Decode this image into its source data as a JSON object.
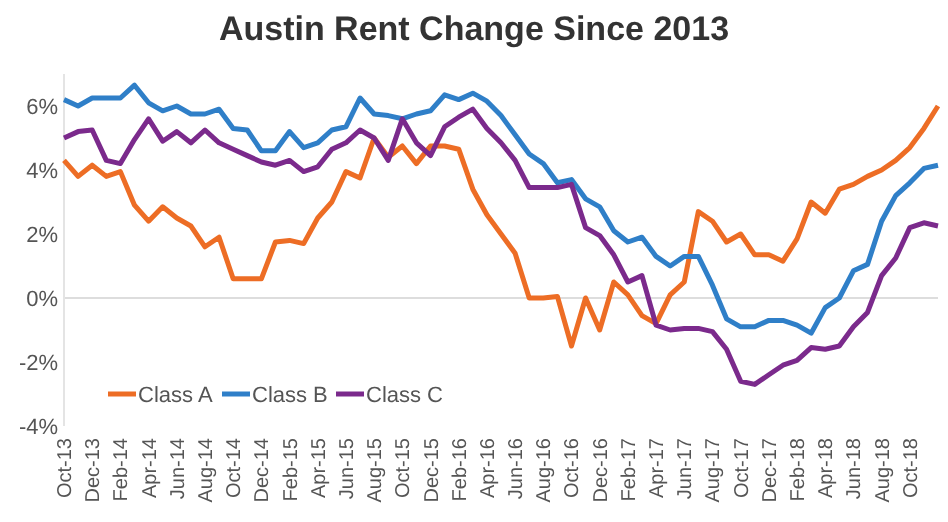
{
  "chart_data": {
    "type": "line",
    "title": "Austin Rent Change Since 2013",
    "categories": [
      "Oct-13",
      null,
      "Dec-13",
      null,
      "Feb-14",
      null,
      "Apr-14",
      null,
      "Jun-14",
      null,
      "Aug-14",
      null,
      "Oct-14",
      null,
      "Dec-14",
      null,
      "Feb-15",
      null,
      "Apr-15",
      null,
      "Jun-15",
      null,
      "Aug-15",
      null,
      "Oct-15",
      null,
      "Dec-15",
      null,
      "Feb-16",
      null,
      "Apr-16",
      null,
      "Jun-16",
      null,
      "Aug-16",
      null,
      "Oct-16",
      null,
      "Dec-16",
      null,
      "Feb-17",
      null,
      "Apr-17",
      null,
      "Jun-17",
      null,
      "Aug-17",
      null,
      "Oct-17",
      null,
      "Dec-17",
      null,
      "Feb-18",
      null,
      "Apr-18",
      null,
      "Jun-18",
      null,
      "Aug-18",
      null,
      "Oct-18",
      null,
      null
    ],
    "series": [
      {
        "name": "Class A",
        "color": "#ed6d25",
        "values": [
          4.3,
          3.8,
          4.15,
          3.8,
          3.95,
          2.9,
          2.4,
          2.85,
          2.5,
          2.25,
          1.6,
          1.9,
          0.6,
          0.6,
          0.6,
          1.75,
          1.8,
          1.7,
          2.5,
          3.0,
          3.95,
          3.75,
          5.0,
          4.4,
          4.75,
          4.2,
          4.75,
          4.75,
          4.65,
          3.4,
          2.6,
          2.0,
          1.4,
          0.0,
          0.0,
          0.05,
          -1.5,
          0.0,
          -1.0,
          0.5,
          0.1,
          -0.55,
          -0.8,
          0.1,
          0.5,
          2.7,
          2.4,
          1.75,
          2.0,
          1.35,
          1.35,
          1.15,
          1.85,
          3.0,
          2.65,
          3.4,
          3.55,
          3.8,
          4.0,
          4.3,
          4.7,
          5.3,
          6.0
        ]
      },
      {
        "name": "Class B",
        "color": "#2f7fc8",
        "values": [
          6.2,
          6.0,
          6.25,
          6.25,
          6.25,
          6.65,
          6.1,
          5.85,
          6.0,
          5.75,
          5.75,
          5.9,
          5.3,
          5.25,
          4.6,
          4.6,
          5.2,
          4.7,
          4.85,
          5.25,
          5.35,
          6.25,
          5.75,
          5.7,
          5.6,
          5.75,
          5.85,
          6.35,
          6.2,
          6.4,
          6.15,
          5.7,
          5.1,
          4.5,
          4.2,
          3.6,
          3.7,
          3.1,
          2.85,
          2.1,
          1.75,
          1.9,
          1.3,
          1.0,
          1.3,
          1.3,
          0.4,
          -0.65,
          -0.9,
          -0.9,
          -0.7,
          -0.7,
          -0.85,
          -1.1,
          -0.3,
          0.0,
          0.85,
          1.05,
          2.4,
          3.2,
          3.6,
          4.05,
          4.15
        ]
      },
      {
        "name": "Class C",
        "color": "#7b2a8c",
        "values": [
          5.0,
          5.2,
          5.25,
          4.3,
          4.2,
          4.95,
          5.6,
          4.9,
          5.2,
          4.85,
          5.25,
          4.85,
          4.65,
          4.45,
          4.25,
          4.15,
          4.3,
          3.95,
          4.1,
          4.65,
          4.85,
          5.25,
          5.0,
          4.3,
          5.6,
          4.85,
          4.45,
          5.35,
          5.65,
          5.9,
          5.3,
          4.85,
          4.3,
          3.45,
          3.45,
          3.45,
          3.55,
          2.2,
          1.95,
          1.35,
          0.5,
          0.7,
          -0.85,
          -1.0,
          -0.95,
          -0.95,
          -1.05,
          -1.6,
          -2.6,
          -2.7,
          -2.4,
          -2.1,
          -1.95,
          -1.55,
          -1.6,
          -1.5,
          -0.9,
          -0.45,
          0.7,
          1.25,
          2.2,
          2.35,
          2.25
        ]
      }
    ],
    "ylim": [
      -4,
      7
    ],
    "yticks": [
      {
        "value": -4,
        "label": "-4%"
      },
      {
        "value": -2,
        "label": "-2%"
      },
      {
        "value": 0,
        "label": "0%"
      },
      {
        "value": 2,
        "label": "2%"
      },
      {
        "value": 4,
        "label": "4%"
      },
      {
        "value": 6,
        "label": "6%"
      }
    ],
    "ref_lines": [
      {
        "axis": "y",
        "value": 0,
        "color": "#dddddd"
      }
    ],
    "grid": false,
    "legend": "bottom left",
    "marker": "none",
    "line_style": "solid"
  }
}
